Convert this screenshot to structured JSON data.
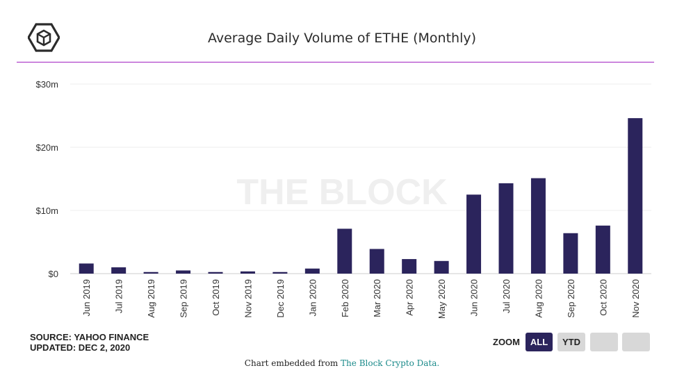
{
  "header": {
    "logo_icon": "the-block-cube-logo",
    "title": "Average Daily Volume of ETHE (Monthly)"
  },
  "chart_data": {
    "type": "bar",
    "title": "Average Daily Volume of ETHE (Monthly)",
    "categories": [
      "Jun 2019",
      "Jul 2019",
      "Aug 2019",
      "Sep 2019",
      "Oct 2019",
      "Nov 2019",
      "Dec 2019",
      "Jan 2020",
      "Feb 2020",
      "Mar 2020",
      "Apr 2020",
      "May 2020",
      "Jun 2020",
      "Jul 2020",
      "Aug 2020",
      "Sep 2020",
      "Oct 2020",
      "Nov 2020"
    ],
    "series": [
      {
        "values": [
          1.6,
          1.0,
          0.25,
          0.5,
          0.25,
          0.35,
          0.25,
          0.8,
          7.1,
          3.9,
          2.3,
          2.0,
          12.5,
          14.3,
          15.1,
          6.4,
          7.6,
          24.6
        ]
      }
    ],
    "y_tick_labels": [
      "$0",
      "$10m",
      "$20m",
      "$30m"
    ],
    "y_ticks": [
      0,
      10,
      20,
      30
    ],
    "ylim": [
      0,
      30
    ],
    "unit": "million USD",
    "bar_color": "#2b245c",
    "grid": true,
    "legend": "none",
    "watermark": "THE BLOCK"
  },
  "footer_left": {
    "source": "SOURCE: YAHOO FINANCE",
    "updated": "UPDATED: DEC 2, 2020"
  },
  "zoom": {
    "label": "ZOOM",
    "buttons": [
      "ALL",
      "YTD"
    ],
    "active": "ALL",
    "active_color": "#2b245c"
  },
  "embed": {
    "prefix": "Chart embedded from ",
    "link_text": "The Block Crypto Data."
  }
}
